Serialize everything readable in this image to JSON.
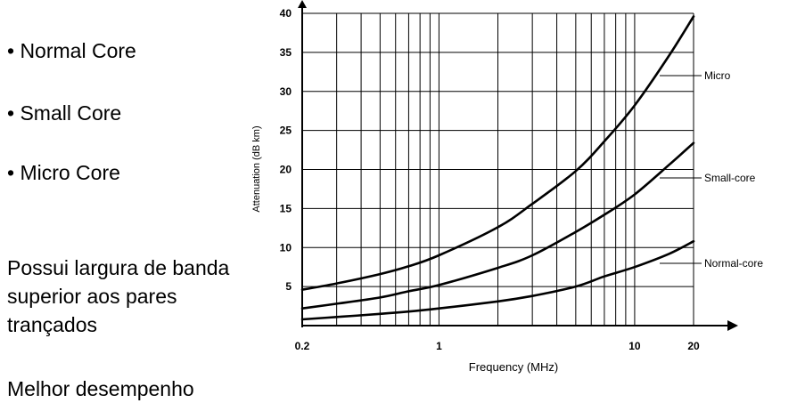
{
  "bullets": [
    "• Normal Core",
    "• Small Core",
    "• Micro Core"
  ],
  "paragraph": [
    "Possui largura de banda",
    "superior aos pares",
    "trançados"
  ],
  "footer_text": "Melhor desempenho",
  "chart_data": {
    "type": "line",
    "title": "",
    "xlabel": "Frequency (MHz)",
    "ylabel": "Attenuation (dB km)",
    "x_scale": "log",
    "xlim": [
      0.2,
      20
    ],
    "ylim": [
      0,
      40
    ],
    "x_ticks": [
      0.2,
      1,
      10,
      20
    ],
    "x_tick_labels": [
      "0.2",
      "1",
      "10",
      "20"
    ],
    "y_ticks": [
      5,
      10,
      15,
      20,
      25,
      30,
      35,
      40
    ],
    "y_tick_labels": [
      "5",
      "10",
      "15",
      "20",
      "25",
      "30",
      "35",
      "40"
    ],
    "x_gridlines": [
      0.2,
      0.3,
      0.4,
      0.5,
      0.6,
      0.7,
      0.8,
      0.9,
      1,
      2,
      3,
      4,
      5,
      6,
      7,
      8,
      9,
      10,
      20
    ],
    "grid": true,
    "legend": "inline labels at right end of curves",
    "series": [
      {
        "name": "Micro",
        "x": [
          0.2,
          0.3,
          0.5,
          0.7,
          1,
          2,
          3,
          5,
          7,
          10,
          15,
          20
        ],
        "y": [
          4.6,
          5.4,
          6.6,
          7.6,
          9.0,
          12.6,
          15.6,
          19.8,
          23.6,
          28.2,
          34.6,
          39.6
        ]
      },
      {
        "name": "Small-core",
        "x": [
          0.2,
          0.3,
          0.5,
          0.7,
          1,
          2,
          3,
          5,
          7,
          10,
          15,
          20
        ],
        "y": [
          2.2,
          2.8,
          3.6,
          4.4,
          5.2,
          7.4,
          9.0,
          12.0,
          14.2,
          16.8,
          20.6,
          23.4
        ]
      },
      {
        "name": "Normal-core",
        "x": [
          0.2,
          0.3,
          0.5,
          0.7,
          1,
          2,
          3,
          5,
          7,
          10,
          15,
          20
        ],
        "y": [
          0.8,
          1.1,
          1.5,
          1.8,
          2.2,
          3.1,
          3.8,
          5.0,
          6.3,
          7.5,
          9.2,
          10.8
        ]
      }
    ]
  }
}
